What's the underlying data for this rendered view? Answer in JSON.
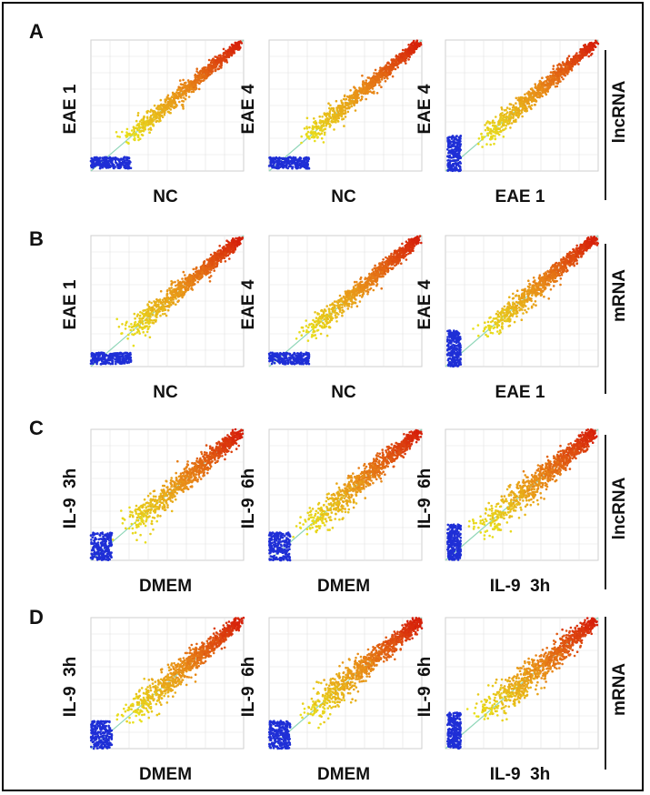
{
  "figure": {
    "colors": {
      "low": "#1f2fd6",
      "mid": "#e6e21a",
      "high": "#d61e0a",
      "diagonal": "#8fd6b8",
      "grid": "#e2e2e2"
    }
  },
  "chart_data": [
    {
      "type": "scatter",
      "panel": "A",
      "xlabel": "NC",
      "ylabel": "EAE 1",
      "label": "lncRNA",
      "low_cluster": "horizontal",
      "spread": 0.55
    },
    {
      "type": "scatter",
      "panel": "A",
      "xlabel": "NC",
      "ylabel": "EAE 4",
      "label": "lncRNA",
      "low_cluster": "horizontal",
      "spread": 0.55
    },
    {
      "type": "scatter",
      "panel": "A",
      "xlabel": "EAE 1",
      "ylabel": "EAE 4",
      "label": "lncRNA",
      "low_cluster": "vertical",
      "spread": 0.6
    },
    {
      "type": "scatter",
      "panel": "B",
      "xlabel": "NC",
      "ylabel": "EAE 1",
      "label": "mRNA",
      "low_cluster": "horizontal",
      "spread": 0.7
    },
    {
      "type": "scatter",
      "panel": "B",
      "xlabel": "NC",
      "ylabel": "EAE 4",
      "label": "mRNA",
      "low_cluster": "horizontal",
      "spread": 0.6
    },
    {
      "type": "scatter",
      "panel": "B",
      "xlabel": "EAE 1",
      "ylabel": "EAE 4",
      "label": "mRNA",
      "low_cluster": "vertical",
      "spread": 0.7
    },
    {
      "type": "scatter",
      "panel": "C",
      "xlabel": "DMEM",
      "ylabel": "IL-9  3h",
      "label": "lncRNA",
      "low_cluster": "block",
      "spread": 0.8
    },
    {
      "type": "scatter",
      "panel": "C",
      "xlabel": "DMEM",
      "ylabel": "IL-9  6h",
      "label": "lncRNA",
      "low_cluster": "block",
      "spread": 0.9
    },
    {
      "type": "scatter",
      "panel": "C",
      "xlabel": "IL-9  3h",
      "ylabel": "IL-9  6h",
      "label": "lncRNA",
      "low_cluster": "vertical",
      "spread": 1.0
    },
    {
      "type": "scatter",
      "panel": "D",
      "xlabel": "DMEM",
      "ylabel": "IL-9  3h",
      "label": "mRNA",
      "low_cluster": "block",
      "spread": 0.85
    },
    {
      "type": "scatter",
      "panel": "D",
      "xlabel": "DMEM",
      "ylabel": "IL-9  6h",
      "label": "mRNA",
      "low_cluster": "block",
      "spread": 0.95
    },
    {
      "type": "scatter",
      "panel": "D",
      "xlabel": "IL-9  3h",
      "ylabel": "IL-9  6h",
      "label": "mRNA",
      "low_cluster": "vertical",
      "spread": 1.05
    }
  ],
  "rows": [
    {
      "letter": "A",
      "type_label": "lncRNA"
    },
    {
      "letter": "B",
      "type_label": "mRNA"
    },
    {
      "letter": "C",
      "type_label": "lncRNA"
    },
    {
      "letter": "D",
      "type_label": "mRNA"
    }
  ]
}
